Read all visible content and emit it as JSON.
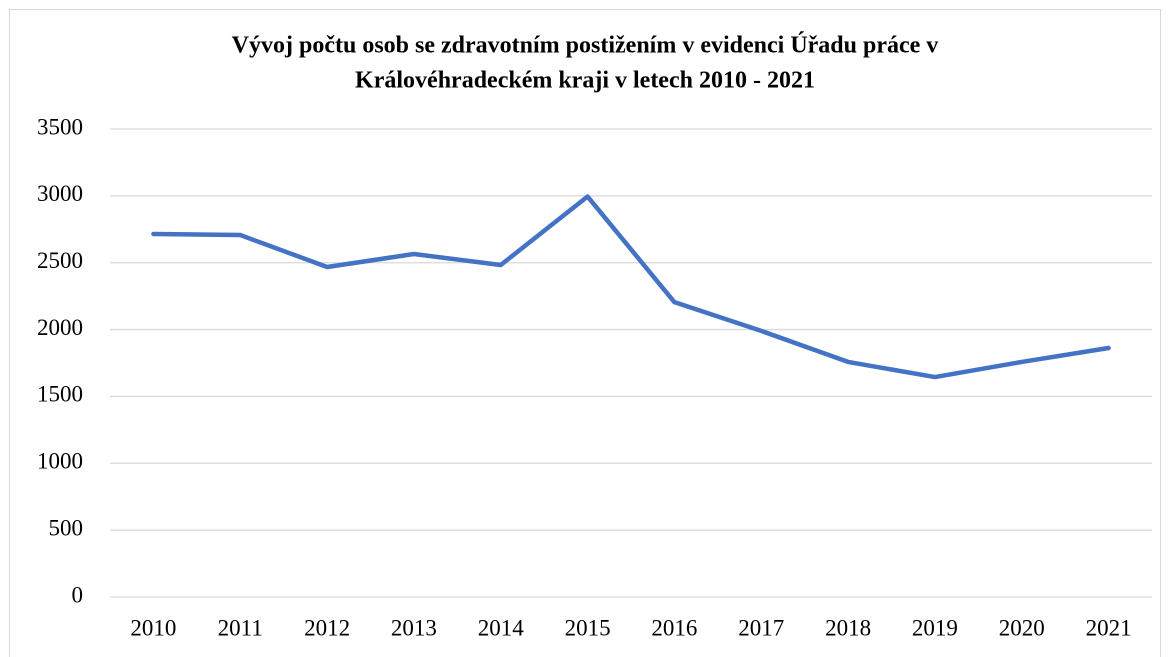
{
  "chart_data": {
    "type": "line",
    "title": [
      "Vývoj počtu osob se zdravotním postižením v evidenci Úřadu práce v",
      "Královéhradeckém kraji v letech 2010 - 2021"
    ],
    "categories": [
      "2010",
      "2011",
      "2012",
      "2013",
      "2014",
      "2015",
      "2016",
      "2017",
      "2018",
      "2019",
      "2020",
      "2021"
    ],
    "series": [
      {
        "color": "#4472c4",
        "values": [
          2715,
          2707,
          2468,
          2565,
          2483,
          2995,
          2205,
          1990,
          1758,
          1645,
          1758,
          1862
        ]
      }
    ],
    "ylim": [
      0,
      3500
    ],
    "yticks": [
      0,
      500,
      1000,
      1500,
      2000,
      2500,
      3000,
      3500
    ],
    "grid": true
  }
}
